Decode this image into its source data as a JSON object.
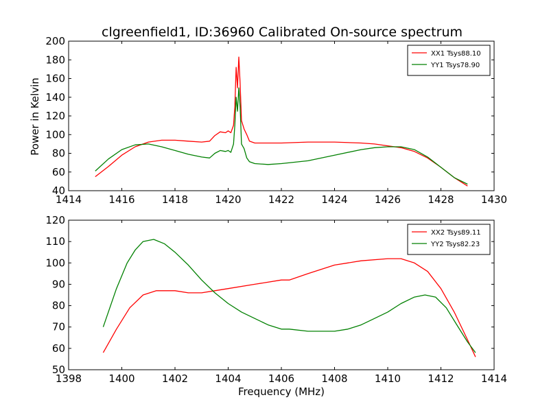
{
  "title": "clgreenfield1, ID:36960 Calibrated On-source spectrum",
  "chart_data": [
    {
      "type": "line",
      "title": "clgreenfield1, ID:36960 Calibrated On-source spectrum",
      "xlabel": "",
      "ylabel": "Power in Kelvin",
      "xlim": [
        1414,
        1430
      ],
      "ylim": [
        40,
        200
      ],
      "xticks": [
        1414,
        1416,
        1418,
        1420,
        1422,
        1424,
        1426,
        1428,
        1430
      ],
      "yticks": [
        40,
        60,
        80,
        100,
        120,
        140,
        160,
        180,
        200
      ],
      "grid": false,
      "legend": "top-right",
      "series": [
        {
          "name": "XX1 Tsys88.10",
          "color": "#ff0000",
          "x": [
            1415.0,
            1415.5,
            1416.0,
            1416.5,
            1417.0,
            1417.5,
            1418.0,
            1418.5,
            1419.0,
            1419.3,
            1419.5,
            1419.7,
            1419.9,
            1420.0,
            1420.1,
            1420.2,
            1420.25,
            1420.3,
            1420.35,
            1420.4,
            1420.45,
            1420.5,
            1420.6,
            1420.7,
            1420.8,
            1421.0,
            1421.5,
            1422.0,
            1423.0,
            1424.0,
            1425.0,
            1425.5,
            1426.0,
            1426.5,
            1427.0,
            1427.5,
            1428.0,
            1428.5,
            1429.0
          ],
          "y": [
            55,
            66,
            78,
            87,
            92,
            94,
            94,
            93,
            92,
            93,
            99,
            103,
            102,
            104,
            102,
            110,
            130,
            172,
            150,
            183,
            155,
            115,
            106,
            100,
            93,
            91,
            91,
            91,
            92,
            92,
            91,
            90,
            88,
            86,
            82,
            75,
            65,
            54,
            45
          ]
        },
        {
          "name": "YY1 Tsys78.90",
          "color": "#008000",
          "x": [
            1415.0,
            1415.5,
            1416.0,
            1416.5,
            1417.0,
            1417.5,
            1418.0,
            1418.5,
            1419.0,
            1419.3,
            1419.5,
            1419.7,
            1419.9,
            1420.0,
            1420.1,
            1420.2,
            1420.25,
            1420.3,
            1420.35,
            1420.4,
            1420.45,
            1420.5,
            1420.6,
            1420.7,
            1420.8,
            1421.0,
            1421.5,
            1422.0,
            1423.0,
            1424.0,
            1425.0,
            1425.5,
            1426.0,
            1426.5,
            1427.0,
            1427.5,
            1428.0,
            1428.5,
            1429.0
          ],
          "y": [
            61,
            74,
            84,
            89,
            90,
            87,
            83,
            79,
            76,
            75,
            80,
            83,
            82,
            83,
            81,
            90,
            110,
            140,
            125,
            150,
            130,
            90,
            85,
            75,
            71,
            69,
            68,
            69,
            72,
            78,
            84,
            86,
            87,
            87,
            84,
            76,
            65,
            54,
            47
          ]
        }
      ]
    },
    {
      "type": "line",
      "title": "",
      "xlabel": "Frequency (MHz)",
      "ylabel": "",
      "xlim": [
        1398,
        1414
      ],
      "ylim": [
        50,
        120
      ],
      "xticks": [
        1398,
        1400,
        1402,
        1404,
        1406,
        1408,
        1410,
        1412,
        1414
      ],
      "yticks": [
        50,
        60,
        70,
        80,
        90,
        100,
        110,
        120
      ],
      "grid": false,
      "legend": "top-right",
      "series": [
        {
          "name": "XX2 Tsys89.11",
          "color": "#ff0000",
          "x": [
            1399.3,
            1399.8,
            1400.3,
            1400.8,
            1401.3,
            1402.0,
            1402.5,
            1403.0,
            1403.5,
            1404.0,
            1405.0,
            1406.0,
            1406.3,
            1407.0,
            1408.0,
            1408.5,
            1409.0,
            1410.0,
            1410.5,
            1411.0,
            1411.5,
            1412.0,
            1412.5,
            1413.0,
            1413.3
          ],
          "y": [
            58,
            69,
            79,
            85,
            87,
            87,
            86,
            86,
            87,
            88,
            90,
            92,
            92,
            95,
            99,
            100,
            101,
            102,
            102,
            100,
            96,
            88,
            77,
            64,
            56
          ]
        },
        {
          "name": "YY2 Tsys82.23",
          "color": "#008000",
          "x": [
            1399.3,
            1399.8,
            1400.2,
            1400.5,
            1400.8,
            1401.2,
            1401.6,
            1402.0,
            1402.5,
            1403.0,
            1403.5,
            1404.0,
            1404.5,
            1405.0,
            1405.5,
            1406.0,
            1406.3,
            1407.0,
            1407.5,
            1408.0,
            1408.5,
            1409.0,
            1409.5,
            1410.0,
            1410.5,
            1411.0,
            1411.4,
            1411.8,
            1412.2,
            1412.6,
            1413.0,
            1413.3
          ],
          "y": [
            70,
            88,
            100,
            106,
            110,
            111,
            109,
            105,
            99,
            92,
            86,
            81,
            77,
            74,
            71,
            69,
            69,
            68,
            68,
            68,
            69,
            71,
            74,
            77,
            81,
            84,
            85,
            84,
            79,
            71,
            63,
            58
          ]
        }
      ]
    }
  ]
}
